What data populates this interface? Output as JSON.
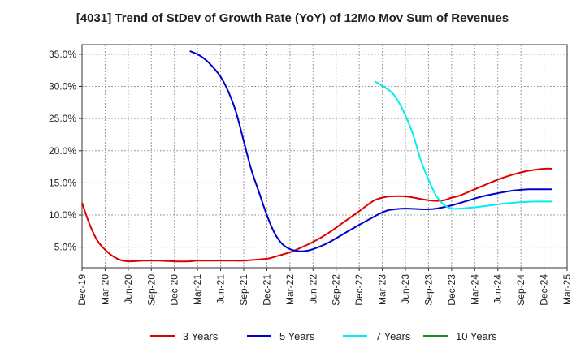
{
  "chart_data": {
    "type": "line",
    "title": "[4031]  Trend of StDev of Growth Rate (YoY) of 12Mo Mov Sum of Revenues",
    "xlabel": "",
    "ylabel": "",
    "ylim": [
      1.8,
      36.5
    ],
    "yticks": [
      5.0,
      10.0,
      15.0,
      20.0,
      25.0,
      30.0,
      35.0
    ],
    "ytick_labels": [
      "5.0%",
      "10.0%",
      "15.0%",
      "20.0%",
      "25.0%",
      "30.0%",
      "35.0%"
    ],
    "x_tick_labels": [
      "Dec-19",
      "Mar-20",
      "Jun-20",
      "Sep-20",
      "Dec-20",
      "Mar-21",
      "Jun-21",
      "Sep-21",
      "Dec-21",
      "Mar-22",
      "Jun-22",
      "Sep-22",
      "Dec-22",
      "Mar-23",
      "Jun-23",
      "Sep-23",
      "Dec-23",
      "Mar-24",
      "Jun-24",
      "Sep-24",
      "Dec-24",
      "Mar-25"
    ],
    "x_month_range": [
      0,
      63
    ],
    "grid": true,
    "legend_position": "bottom",
    "series": [
      {
        "name": "3 Years",
        "color": "#dd0000",
        "points": [
          [
            0,
            11.9
          ],
          [
            1,
            8.5
          ],
          [
            2,
            6.0
          ],
          [
            3,
            4.6
          ],
          [
            4,
            3.6
          ],
          [
            5,
            3.0
          ],
          [
            6,
            2.8
          ],
          [
            8,
            2.9
          ],
          [
            9,
            2.9
          ],
          [
            10,
            2.9
          ],
          [
            12,
            2.8
          ],
          [
            14,
            2.8
          ],
          [
            15,
            2.9
          ],
          [
            17,
            2.9
          ],
          [
            19,
            2.9
          ],
          [
            21,
            2.9
          ],
          [
            22,
            3.0
          ],
          [
            24,
            3.2
          ],
          [
            25,
            3.5
          ],
          [
            27,
            4.2
          ],
          [
            28,
            4.7
          ],
          [
            30,
            5.8
          ],
          [
            32,
            7.2
          ],
          [
            34,
            8.9
          ],
          [
            36,
            10.6
          ],
          [
            37,
            11.5
          ],
          [
            38,
            12.3
          ],
          [
            39,
            12.7
          ],
          [
            40,
            12.9
          ],
          [
            42,
            12.9
          ],
          [
            44,
            12.5
          ],
          [
            45,
            12.3
          ],
          [
            46,
            12.2
          ],
          [
            47,
            12.3
          ],
          [
            48,
            12.7
          ],
          [
            49,
            13.0
          ],
          [
            51,
            14.0
          ],
          [
            54,
            15.5
          ],
          [
            56,
            16.3
          ],
          [
            58,
            16.9
          ],
          [
            60,
            17.2
          ],
          [
            61,
            17.2
          ]
        ]
      },
      {
        "name": "5 Years",
        "color": "#0000cc",
        "points": [
          [
            14,
            35.5
          ],
          [
            15,
            35.0
          ],
          [
            16,
            34.2
          ],
          [
            17,
            33.0
          ],
          [
            18,
            31.5
          ],
          [
            19,
            29.2
          ],
          [
            20,
            26.0
          ],
          [
            21,
            21.5
          ],
          [
            22,
            17.0
          ],
          [
            23,
            13.5
          ],
          [
            24,
            10.0
          ],
          [
            25,
            7.2
          ],
          [
            26,
            5.5
          ],
          [
            27,
            4.7
          ],
          [
            28,
            4.4
          ],
          [
            29,
            4.4
          ],
          [
            30,
            4.7
          ],
          [
            32,
            5.7
          ],
          [
            35,
            7.8
          ],
          [
            38,
            9.8
          ],
          [
            39,
            10.4
          ],
          [
            40,
            10.8
          ],
          [
            42,
            11.0
          ],
          [
            44,
            10.9
          ],
          [
            45,
            10.9
          ],
          [
            46,
            11.0
          ],
          [
            48,
            11.5
          ],
          [
            50,
            12.2
          ],
          [
            52,
            12.9
          ],
          [
            54,
            13.4
          ],
          [
            56,
            13.8
          ],
          [
            58,
            14.0
          ],
          [
            60,
            14.0
          ],
          [
            61,
            14.0
          ]
        ]
      },
      {
        "name": "7 Years",
        "color": "#00eeee",
        "points": [
          [
            38,
            30.8
          ],
          [
            40,
            29.3
          ],
          [
            41,
            27.8
          ],
          [
            42,
            25.5
          ],
          [
            43,
            22.5
          ],
          [
            44,
            18.5
          ],
          [
            45,
            15.5
          ],
          [
            46,
            13.0
          ],
          [
            47,
            11.6
          ],
          [
            48,
            11.0
          ],
          [
            49,
            11.0
          ],
          [
            51,
            11.2
          ],
          [
            53,
            11.5
          ],
          [
            55,
            11.8
          ],
          [
            57,
            12.0
          ],
          [
            59,
            12.1
          ],
          [
            61,
            12.1
          ]
        ]
      },
      {
        "name": "10 Years",
        "color": "#228822",
        "points": []
      }
    ]
  }
}
